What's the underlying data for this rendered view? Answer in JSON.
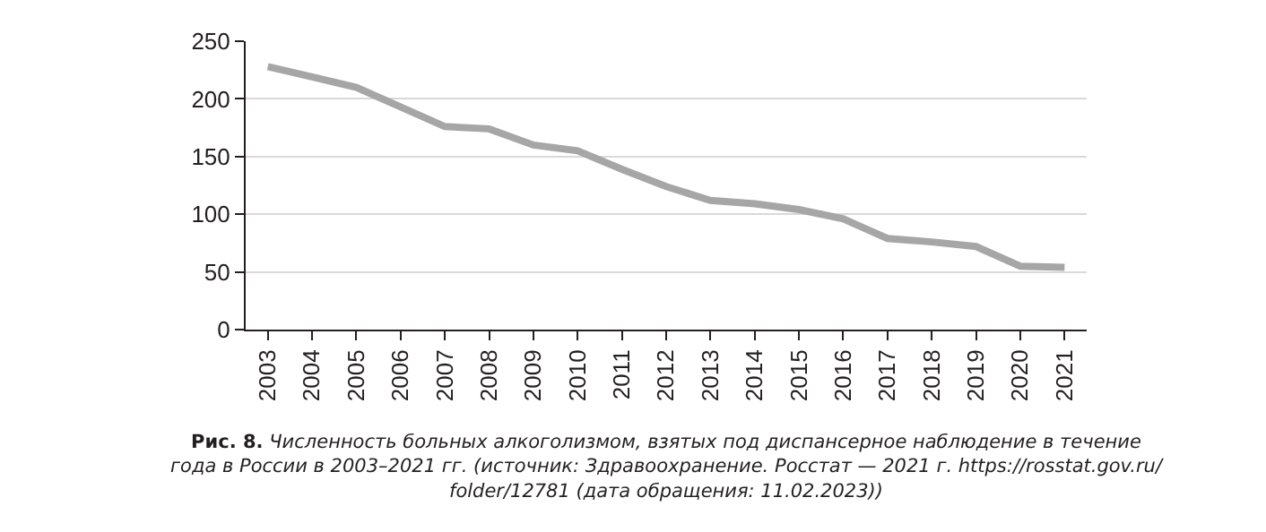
{
  "chart_data": {
    "type": "line",
    "categories": [
      "2003",
      "2004",
      "2005",
      "2006",
      "2007",
      "2008",
      "2009",
      "2010",
      "2011",
      "2012",
      "2013",
      "2014",
      "2015",
      "2016",
      "2017",
      "2018",
      "2019",
      "2020",
      "2021"
    ],
    "series": [
      {
        "color": "#a6a6a6",
        "values": [
          228,
          219,
          210,
          193,
          176,
          174,
          160,
          155,
          139,
          124,
          112,
          109,
          104,
          96,
          79,
          76,
          72,
          55,
          54
        ]
      }
    ],
    "ylim": [
      0,
      250
    ],
    "yticks": [
      0,
      50,
      100,
      150,
      200,
      250
    ],
    "grid": "y",
    "marker": "none",
    "line_style": "solid",
    "annotations": [
      "Рис. 8.",
      "Численность больных алкоголизмом, взятых под диспансерное наблюдение в течение\nгода в России в 2003–2021 гг. (источник: Здравоохранение. Росстат — 2021 г. https://rosstat.gov.ru/\nfolder/12781 (дата обращения: 11.02.2023))"
    ]
  }
}
